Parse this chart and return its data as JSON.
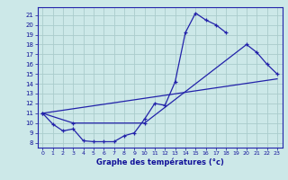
{
  "title": "Graphe des températures (°c)",
  "bg_color": "#cce8e8",
  "grid_color": "#aacccc",
  "line_color": "#2222aa",
  "xlim": [
    -0.5,
    23.5
  ],
  "ylim": [
    7.5,
    21.8
  ],
  "yticks": [
    8,
    9,
    10,
    11,
    12,
    13,
    14,
    15,
    16,
    17,
    18,
    19,
    20,
    21
  ],
  "xticks": [
    0,
    1,
    2,
    3,
    4,
    5,
    6,
    7,
    8,
    9,
    10,
    11,
    12,
    13,
    14,
    15,
    16,
    17,
    18,
    19,
    20,
    21,
    22,
    23
  ],
  "curve1_x": [
    0,
    1,
    2,
    3,
    4,
    5,
    6,
    7,
    8,
    9,
    10,
    11,
    12,
    13,
    14,
    15,
    16,
    17,
    18
  ],
  "curve1_y": [
    11.0,
    9.9,
    9.2,
    9.4,
    8.2,
    8.1,
    8.1,
    8.1,
    8.7,
    9.0,
    10.4,
    12.0,
    11.8,
    14.2,
    19.2,
    21.2,
    20.5,
    20.0,
    19.2
  ],
  "curve2_x": [
    0,
    3,
    10,
    20,
    21,
    22,
    23
  ],
  "curve2_y": [
    11.0,
    10.0,
    10.0,
    18.0,
    17.2,
    16.0,
    15.0
  ],
  "curve3_x": [
    0,
    23
  ],
  "curve3_y": [
    11.0,
    14.5
  ]
}
